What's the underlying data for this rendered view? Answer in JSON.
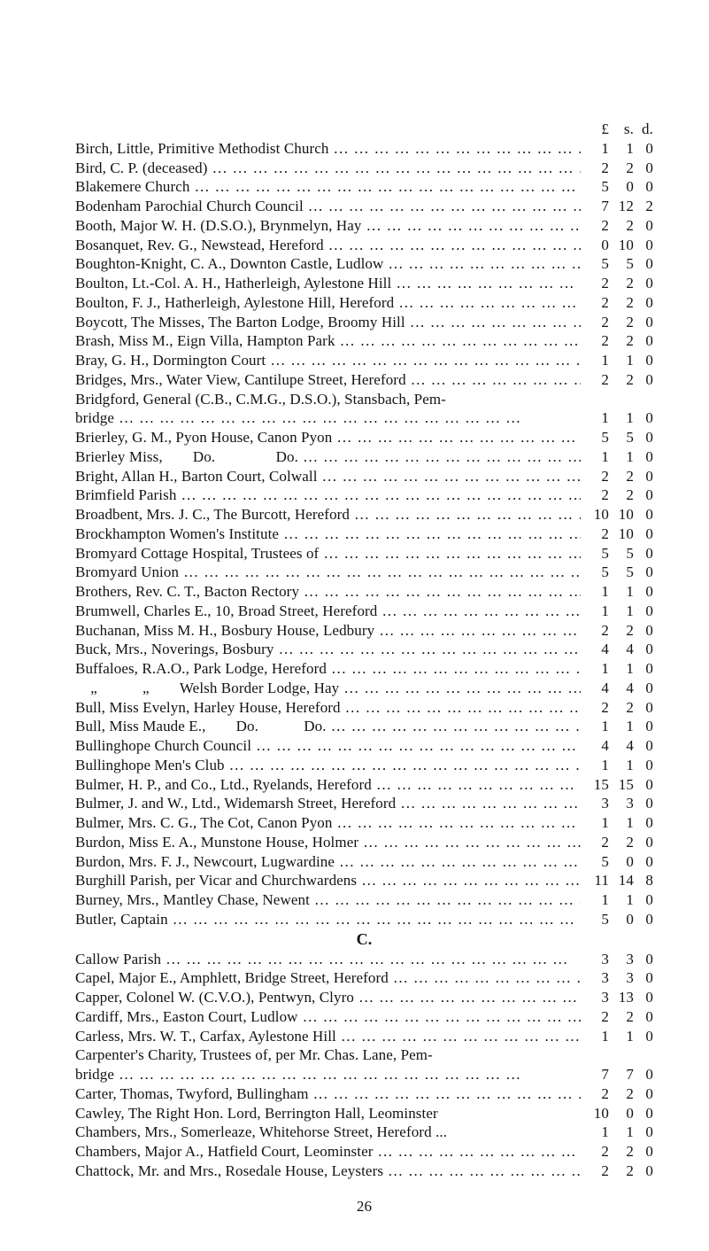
{
  "header": {
    "pounds": "£",
    "shillings": "s.",
    "pence": "d."
  },
  "section_heading": "C.",
  "page_number": "26",
  "entries": [
    {
      "desc": "Birch, Little, Primitive Methodist Church",
      "l": "1",
      "s": "1",
      "d": "0"
    },
    {
      "desc": "Bird, C. P. (deceased)",
      "l": "2",
      "s": "2",
      "d": "0"
    },
    {
      "desc": "Blakemere Church",
      "l": "5",
      "s": "0",
      "d": "0"
    },
    {
      "desc": "Bodenham Parochial Church Council",
      "l": "7",
      "s": "12",
      "d": "2"
    },
    {
      "desc": "Booth, Major W. H. (D.S.O.), Brynmelyn, Hay",
      "l": "2",
      "s": "2",
      "d": "0"
    },
    {
      "desc": "Bosanquet, Rev. G., Newstead, Hereford",
      "l": "0",
      "s": "10",
      "d": "0"
    },
    {
      "desc": "Boughton-Knight, C. A., Downton Castle, Ludlow",
      "l": "5",
      "s": "5",
      "d": "0"
    },
    {
      "desc": "Boulton, Lt.-Col. A. H., Hatherleigh, Aylestone Hill",
      "l": "2",
      "s": "2",
      "d": "0"
    },
    {
      "desc": "Boulton, F. J., Hatherleigh, Aylestone Hill, Hereford",
      "l": "2",
      "s": "2",
      "d": "0"
    },
    {
      "desc": "Boycott, The Misses, The Barton Lodge, Broomy Hill",
      "l": "2",
      "s": "2",
      "d": "0"
    },
    {
      "desc": "Brash, Miss M., Eign Villa, Hampton Park",
      "l": "2",
      "s": "2",
      "d": "0"
    },
    {
      "desc": "Bray, G. H., Dormington Court",
      "l": "1",
      "s": "1",
      "d": "0"
    },
    {
      "desc": "Bridges, Mrs., Water View, Cantilupe Street, Hereford",
      "l": "2",
      "s": "2",
      "d": "0"
    },
    {
      "desc": "Bridgford, General (C.B., C.M.G., D.S.O.), Stansbach, Pem-",
      "cont": true
    },
    {
      "desc": "bridge",
      "indent": true,
      "l": "1",
      "s": "1",
      "d": "0"
    },
    {
      "desc": "Brierley, G. M., Pyon House, Canon Pyon",
      "l": "5",
      "s": "5",
      "d": "0"
    },
    {
      "desc": "Brierley Miss,  Do.    Do.",
      "l": "1",
      "s": "1",
      "d": "0"
    },
    {
      "desc": "Bright, Allan H., Barton Court, Colwall",
      "l": "2",
      "s": "2",
      "d": "0"
    },
    {
      "desc": "Brimfield Parish",
      "l": "2",
      "s": "2",
      "d": "0"
    },
    {
      "desc": "Broadbent, Mrs. J. C., The Burcott, Hereford",
      "l": "10",
      "s": "10",
      "d": "0"
    },
    {
      "desc": "Brockhampton Women's Institute",
      "l": "2",
      "s": "10",
      "d": "0"
    },
    {
      "desc": "Bromyard Cottage Hospital, Trustees of",
      "l": "5",
      "s": "5",
      "d": "0"
    },
    {
      "desc": "Bromyard Union",
      "l": "5",
      "s": "5",
      "d": "0"
    },
    {
      "desc": "Brothers, Rev. C. T., Bacton Rectory",
      "l": "1",
      "s": "1",
      "d": "0"
    },
    {
      "desc": "Brumwell, Charles E., 10, Broad Street, Hereford",
      "l": "1",
      "s": "1",
      "d": "0"
    },
    {
      "desc": "Buchanan, Miss M. H., Bosbury House, Ledbury",
      "l": "2",
      "s": "2",
      "d": "0"
    },
    {
      "desc": "Buck, Mrs., Noverings, Bosbury",
      "l": "4",
      "s": "4",
      "d": "0"
    },
    {
      "desc": "Buffaloes, R.A.O., Park Lodge, Hereford",
      "l": "1",
      "s": "1",
      "d": "0"
    },
    {
      "desc": " „   „  Welsh Border Lodge, Hay",
      "l": "4",
      "s": "4",
      "d": "0"
    },
    {
      "desc": "Bull, Miss Evelyn, Harley House, Hereford",
      "l": "2",
      "s": "2",
      "d": "0"
    },
    {
      "desc": "Bull, Miss Maude E.,  Do.   Do.",
      "l": "1",
      "s": "1",
      "d": "0"
    },
    {
      "desc": "Bullinghope Church Council",
      "l": "4",
      "s": "4",
      "d": "0"
    },
    {
      "desc": "Bullinghope Men's Club",
      "l": "1",
      "s": "1",
      "d": "0"
    },
    {
      "desc": "Bulmer, H. P., and Co., Ltd., Ryelands, Hereford",
      "l": "15",
      "s": "15",
      "d": "0"
    },
    {
      "desc": "Bulmer, J. and W., Ltd., Widemarsh Street, Hereford",
      "l": "3",
      "s": "3",
      "d": "0"
    },
    {
      "desc": "Bulmer, Mrs. C. G., The Cot, Canon Pyon",
      "l": "1",
      "s": "1",
      "d": "0"
    },
    {
      "desc": "Burdon, Miss E. A., Munstone House, Holmer",
      "l": "2",
      "s": "2",
      "d": "0"
    },
    {
      "desc": "Burdon, Mrs. F. J., Newcourt, Lugwardine",
      "l": "5",
      "s": "0",
      "d": "0"
    },
    {
      "desc": "Burghill Parish, per Vicar and Churchwardens",
      "l": "11",
      "s": "14",
      "d": "8"
    },
    {
      "desc": "Burney, Mrs., Mantley Chase, Newent",
      "l": "1",
      "s": "1",
      "d": "0"
    },
    {
      "desc": "Butler, Captain",
      "l": "5",
      "s": "0",
      "d": "0"
    }
  ],
  "entries_c": [
    {
      "desc": "Callow Parish",
      "l": "3",
      "s": "3",
      "d": "0"
    },
    {
      "desc": "Capel, Major E., Amphlett, Bridge Street, Hereford",
      "l": "3",
      "s": "3",
      "d": "0"
    },
    {
      "desc": "Capper, Colonel W. (C.V.O.), Pentwyn, Clyro",
      "l": "3",
      "s": "13",
      "d": "0"
    },
    {
      "desc": "Cardiff, Mrs., Easton Court, Ludlow",
      "l": "2",
      "s": "2",
      "d": "0"
    },
    {
      "desc": "Carless, Mrs. W. T., Carfax, Aylestone Hill",
      "l": "1",
      "s": "1",
      "d": "0"
    },
    {
      "desc": "Carpenter's Charity, Trustees of, per Mr. Chas. Lane, Pem-",
      "cont": true
    },
    {
      "desc": "bridge",
      "indent": true,
      "l": "7",
      "s": "7",
      "d": "0"
    },
    {
      "desc": "Carter, Thomas, Twyford, Bullingham",
      "l": "2",
      "s": "2",
      "d": "0"
    },
    {
      "desc": "Cawley, The Right Hon. Lord, Berrington Hall, Leominster",
      "l": "10",
      "s": "0",
      "d": "0",
      "nolead": true
    },
    {
      "desc": "Chambers, Mrs., Somerleaze, Whitehorse Street, Hereford ...",
      "l": "1",
      "s": "1",
      "d": "0",
      "nolead": true
    },
    {
      "desc": "Chambers, Major A., Hatfield Court, Leominster",
      "l": "2",
      "s": "2",
      "d": "0"
    },
    {
      "desc": "Chattock, Mr. and Mrs., Rosedale House, Leysters",
      "l": "2",
      "s": "2",
      "d": "0"
    }
  ]
}
